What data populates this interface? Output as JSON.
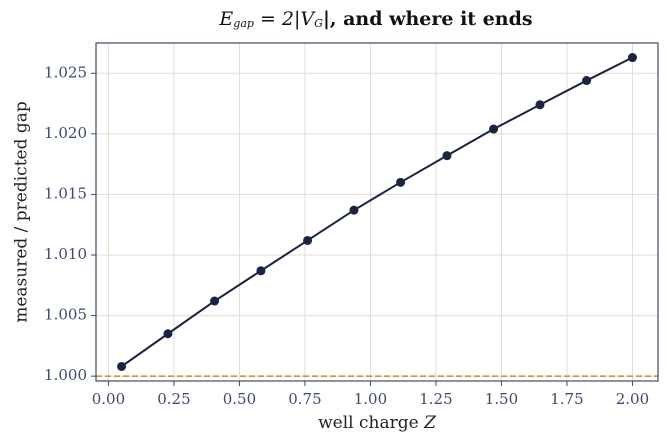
{
  "chart_data": {
    "type": "line",
    "title": [
      "E",
      "gap",
      " = 2|V",
      "G",
      "|, and where it ends"
    ],
    "xlabel": [
      "well charge ",
      "Z"
    ],
    "ylabel": "measured / predicted gap",
    "x": [
      0.05,
      0.227,
      0.405,
      0.582,
      0.76,
      0.937,
      1.115,
      1.292,
      1.47,
      1.647,
      1.825,
      2.0
    ],
    "series": [
      {
        "color": "#1a2340",
        "values": [
          1.0008,
          1.0035,
          1.0062,
          1.0087,
          1.0112,
          1.0137,
          1.016,
          1.0182,
          1.0204,
          1.0224,
          1.0244,
          1.0263
        ]
      }
    ],
    "reference_line": {
      "value": 1,
      "color": "#d4952a"
    },
    "xlim": [
      -0.0475,
      2.0975
    ],
    "xticks": [
      {
        "value": 0,
        "label": "0.00"
      },
      {
        "value": 0.25,
        "label": "0.25"
      },
      {
        "value": 0.5,
        "label": "0.50"
      },
      {
        "value": 0.75,
        "label": "0.75"
      },
      {
        "value": 1,
        "label": "1.00"
      },
      {
        "value": 1.25,
        "label": "1.25"
      },
      {
        "value": 1.5,
        "label": "1.50"
      },
      {
        "value": 1.75,
        "label": "1.75"
      },
      {
        "value": 2,
        "label": "2.00"
      }
    ],
    "ylim": [
      0.9996,
      1.0275
    ],
    "yticks": [
      {
        "value": 1,
        "label": "1.000"
      },
      {
        "value": 1.005,
        "label": "1.005"
      },
      {
        "value": 1.01,
        "label": "1.010"
      },
      {
        "value": 1.015,
        "label": "1.015"
      },
      {
        "value": 1.02,
        "label": "1.020"
      },
      {
        "value": 1.025,
        "label": "1.025"
      }
    ],
    "grid": true
  }
}
